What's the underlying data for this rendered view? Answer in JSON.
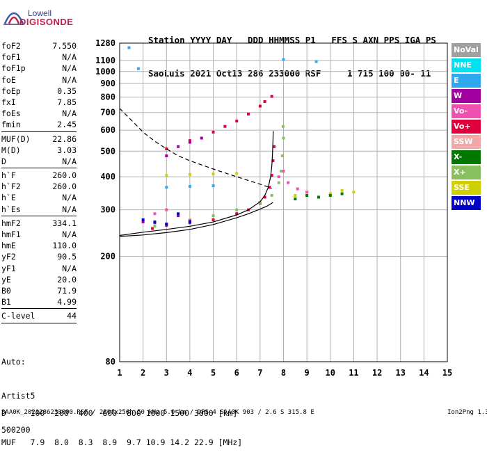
{
  "logo": {
    "line1": "Lowell",
    "line2": "DIGISONDE"
  },
  "header": {
    "line1": "Station YYYY DAY   DDD HHMMSS P1   FFS S AXN PPS IGA PS",
    "line2": "SaoLuis 2021 Oct13 286 233000 RSF     1 715 100 00- 11"
  },
  "params": {
    "group1": [
      {
        "label": "foF2",
        "value": "7.550"
      },
      {
        "label": "foF1",
        "value": "N/A"
      },
      {
        "label": "foF1p",
        "value": "N/A"
      },
      {
        "label": "foE",
        "value": "N/A"
      },
      {
        "label": "foEp",
        "value": "0.35"
      },
      {
        "label": "fxI",
        "value": "7.85"
      },
      {
        "label": "foEs",
        "value": "N/A"
      },
      {
        "label": "fmin",
        "value": "2.45"
      }
    ],
    "group2": [
      {
        "label": "MUF(D)",
        "value": "22.86"
      },
      {
        "label": "M(D)",
        "value": "3.03"
      },
      {
        "label": "D",
        "value": "N/A"
      }
    ],
    "group3": [
      {
        "label": "h`F",
        "value": "260.0"
      },
      {
        "label": "h`F2",
        "value": "260.0"
      },
      {
        "label": "h`E",
        "value": "N/A"
      },
      {
        "label": "h`Es",
        "value": "N/A"
      }
    ],
    "group4": [
      {
        "label": "hmF2",
        "value": "334.1"
      },
      {
        "label": "hmF1",
        "value": "N/A"
      },
      {
        "label": "hmE",
        "value": "110.0"
      },
      {
        "label": "yF2",
        "value": "90.5"
      },
      {
        "label": "yF1",
        "value": "N/A"
      },
      {
        "label": "yE",
        "value": "20.0"
      },
      {
        "label": "B0",
        "value": "71.9"
      },
      {
        "label": "B1",
        "value": "4.99"
      }
    ],
    "group5": [
      {
        "label": "C-level",
        "value": "44"
      }
    ]
  },
  "auto": {
    "line1": "Auto:",
    "line2": "Artist5",
    "line3": "500200"
  },
  "legend": [
    {
      "label": "NoVal",
      "color": "#a0a0a0"
    },
    {
      "label": "NNE",
      "color": "#00e0f0"
    },
    {
      "label": "E",
      "color": "#30a8f0"
    },
    {
      "label": "W",
      "color": "#a000a0"
    },
    {
      "label": "Vo-",
      "color": "#f050b0"
    },
    {
      "label": "Vo+",
      "color": "#e0003c"
    },
    {
      "label": "SSW",
      "color": "#f0a8a8"
    },
    {
      "label": "X-",
      "color": "#007800"
    },
    {
      "label": "X+",
      "color": "#88c060"
    },
    {
      "label": "SSE",
      "color": "#d0d000"
    },
    {
      "label": "NNW",
      "color": "#0000c8"
    }
  ],
  "dmuf": {
    "line1": "D     100  200  400  600  800 1000 1500 3000 [km]",
    "line2": "MUF   7.9  8.0  8.3  8.9  9.7 10.9 14.2 22.9 [MHz]"
  },
  "footer": {
    "left": "SAA0K_2021286233000.RSF / 280fx256h 50 kHz 5.0 km / DPS-4 SAA0K 903 / 2.6 S 315.8 E",
    "right": "Ion2Png 1.3.17"
  },
  "chart_data": {
    "type": "scatter",
    "x_ticks": [
      "1",
      "2",
      "3",
      "4",
      "5",
      "6",
      "7",
      "8",
      "9",
      "10",
      "11",
      "12",
      "13",
      "14",
      "15"
    ],
    "y_ticks": [
      "80",
      "200",
      "300",
      "400",
      "500",
      "600",
      "700",
      "800",
      "900",
      "1000",
      "1100",
      "1280"
    ],
    "xlim": [
      1,
      15
    ],
    "ylim": [
      80,
      1280
    ],
    "y_scale": "log",
    "grid": true,
    "legend_placement": "right",
    "series": [
      {
        "name": "Vo+",
        "color": "#e0003c",
        "points": [
          [
            2.4,
            255
          ],
          [
            3,
            262
          ],
          [
            4,
            268
          ],
          [
            5,
            275
          ],
          [
            6,
            290
          ],
          [
            6.5,
            300
          ],
          [
            7,
            318
          ],
          [
            7.2,
            335
          ],
          [
            7.4,
            365
          ],
          [
            7.5,
            405
          ],
          [
            7.55,
            460
          ],
          [
            7.6,
            520
          ]
        ]
      },
      {
        "name": "Vo+",
        "color": "#e0003c",
        "points": [
          [
            3,
            510
          ],
          [
            4,
            548
          ],
          [
            5,
            590
          ],
          [
            5.5,
            620
          ],
          [
            6,
            650
          ],
          [
            6.5,
            690
          ],
          [
            7,
            740
          ],
          [
            7.2,
            770
          ],
          [
            7.5,
            805
          ]
        ]
      },
      {
        "name": "X+",
        "color": "#88c060",
        "points": [
          [
            2.5,
            260
          ],
          [
            4,
            275
          ],
          [
            5,
            285
          ],
          [
            6,
            300
          ],
          [
            7,
            320
          ],
          [
            7.5,
            340
          ],
          [
            7.8,
            380
          ],
          [
            7.9,
            420
          ],
          [
            7.95,
            480
          ],
          [
            8,
            560
          ],
          [
            7.98,
            620
          ]
        ]
      },
      {
        "name": "W",
        "color": "#a000a0",
        "points": [
          [
            2,
            270
          ],
          [
            2.5,
            268
          ],
          [
            3,
            265
          ],
          [
            3.5,
            285
          ],
          [
            4,
            272
          ],
          [
            3,
            480
          ],
          [
            3.5,
            520
          ],
          [
            4,
            540
          ],
          [
            4.5,
            560
          ]
        ]
      },
      {
        "name": "SSE",
        "color": "#d0d000",
        "points": [
          [
            3,
            405
          ],
          [
            4,
            408
          ],
          [
            5,
            410
          ],
          [
            6,
            412
          ],
          [
            8.5,
            340
          ],
          [
            9,
            350
          ],
          [
            10,
            345
          ],
          [
            10.5,
            355
          ],
          [
            11,
            350
          ]
        ]
      },
      {
        "name": "E",
        "color": "#30a8f0",
        "points": [
          [
            3,
            365
          ],
          [
            4,
            368
          ],
          [
            5,
            370
          ],
          [
            1.4,
            1230
          ],
          [
            1.8,
            1025
          ],
          [
            8,
            1110
          ],
          [
            9.4,
            1090
          ]
        ]
      },
      {
        "name": "X-",
        "color": "#007800",
        "points": [
          [
            8.5,
            330
          ],
          [
            9,
            340
          ],
          [
            9.5,
            335
          ],
          [
            10,
            340
          ],
          [
            10.5,
            345
          ]
        ]
      },
      {
        "name": "NNW",
        "color": "#0000c8",
        "points": [
          [
            2,
            275
          ],
          [
            2.5,
            270
          ],
          [
            3,
            265
          ],
          [
            4,
            270
          ],
          [
            3.5,
            290
          ]
        ]
      },
      {
        "name": "Vo-",
        "color": "#f050b0",
        "points": [
          [
            7.8,
            400
          ],
          [
            8,
            420
          ],
          [
            8.2,
            380
          ],
          [
            8.6,
            360
          ],
          [
            9,
            350
          ],
          [
            2.5,
            290
          ],
          [
            3,
            300
          ]
        ]
      }
    ],
    "curves": [
      {
        "style": "solid",
        "points": [
          [
            1,
            240
          ],
          [
            2,
            247
          ],
          [
            3,
            253
          ],
          [
            4,
            260
          ],
          [
            5,
            270
          ],
          [
            6,
            287
          ],
          [
            6.5,
            300
          ],
          [
            7,
            322
          ],
          [
            7.2,
            340
          ],
          [
            7.35,
            365
          ],
          [
            7.45,
            400
          ],
          [
            7.5,
            440
          ],
          [
            7.53,
            490
          ],
          [
            7.55,
            550
          ],
          [
            7.56,
            595
          ]
        ]
      },
      {
        "style": "solid",
        "points": [
          [
            1,
            238
          ],
          [
            2,
            241
          ],
          [
            3,
            246
          ],
          [
            4,
            253
          ],
          [
            5,
            264
          ],
          [
            6,
            280
          ],
          [
            6.5,
            290
          ],
          [
            7,
            302
          ],
          [
            7.3,
            310
          ],
          [
            7.55,
            320
          ]
        ]
      },
      {
        "style": "dashed",
        "points": [
          [
            1,
            725
          ],
          [
            1.5,
            655
          ],
          [
            2,
            590
          ],
          [
            2.5,
            545
          ],
          [
            3,
            510
          ],
          [
            3.5,
            480
          ],
          [
            4,
            460
          ],
          [
            5,
            428
          ],
          [
            6,
            400
          ],
          [
            7,
            375
          ],
          [
            7.5,
            362
          ]
        ]
      }
    ]
  }
}
